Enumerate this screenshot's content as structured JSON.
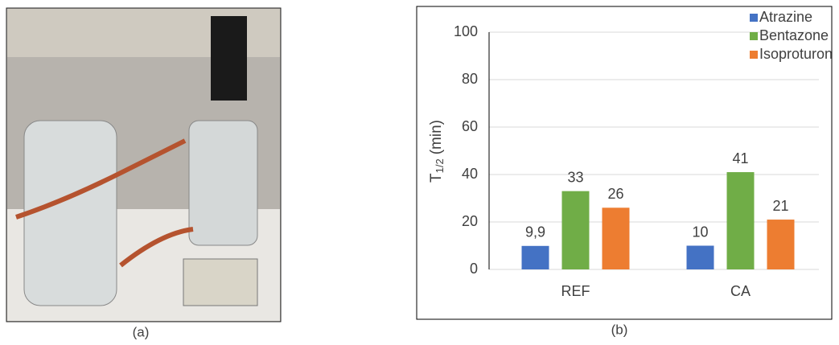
{
  "captions": [
    "(a)",
    "(b)"
  ],
  "chart_data": {
    "type": "bar",
    "y_label": [
      "T",
      "1/2",
      "(min)"
    ],
    "categories": [
      "REF",
      "CA"
    ],
    "series": [
      {
        "name": "Atrazine",
        "color": "#4472c4",
        "values": [
          9.9,
          10
        ],
        "value_labels": [
          "9,9",
          "10"
        ]
      },
      {
        "name": "Bentazone",
        "color": "#70ad47",
        "values": [
          33,
          41
        ],
        "value_labels": [
          "33",
          "41"
        ]
      },
      {
        "name": "Isoproturon",
        "color": "#ed7d31",
        "values": [
          26,
          21
        ],
        "value_labels": [
          "26",
          "21"
        ]
      }
    ],
    "ylim": [
      0,
      100
    ],
    "yticks": [
      0,
      20,
      40,
      60,
      80,
      100
    ],
    "grid": true,
    "legend": "top-right"
  }
}
